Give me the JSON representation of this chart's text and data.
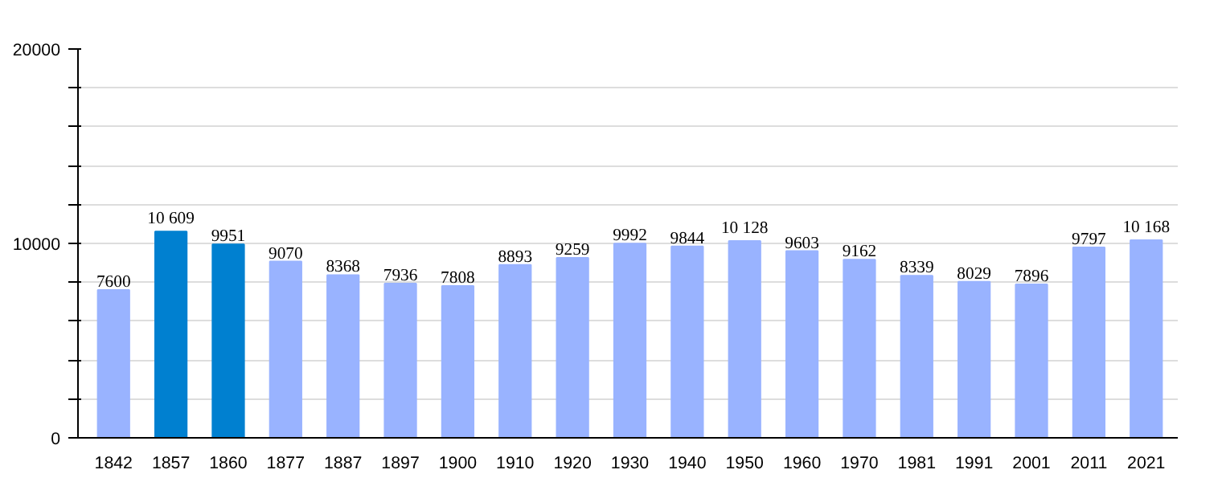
{
  "chart_data": {
    "type": "bar",
    "categories": [
      "1842",
      "1857",
      "1860",
      "1877",
      "1887",
      "1897",
      "1900",
      "1910",
      "1920",
      "1930",
      "1940",
      "1950",
      "1960",
      "1970",
      "1981",
      "1991",
      "2001",
      "2011",
      "2021"
    ],
    "values": [
      7600,
      10609,
      9951,
      9070,
      8368,
      7936,
      7808,
      8893,
      9259,
      9992,
      9844,
      10128,
      9603,
      9162,
      8339,
      8029,
      7896,
      9797,
      10168
    ],
    "colors": [
      "#99b3ff",
      "#0080d0",
      "#0080d0",
      "#99b3ff",
      "#99b3ff",
      "#99b3ff",
      "#99b3ff",
      "#99b3ff",
      "#99b3ff",
      "#99b3ff",
      "#99b3ff",
      "#99b3ff",
      "#99b3ff",
      "#99b3ff",
      "#99b3ff",
      "#99b3ff",
      "#99b3ff",
      "#99b3ff",
      "#99b3ff"
    ],
    "value_labels": [
      "7600",
      "10 609",
      "9951",
      "9070",
      "8368",
      "7936",
      "7808",
      "8893",
      "9259",
      "9992",
      "9844",
      "10 128",
      "9603",
      "9162",
      "8339",
      "8029",
      "7896",
      "9797",
      "10 168"
    ],
    "ylim": [
      0,
      20000
    ],
    "yticks": [
      0,
      {
        "value": 2000,
        "label": null
      },
      {
        "value": 4000,
        "label": null
      },
      {
        "value": 6000,
        "label": null
      },
      {
        "value": 8000,
        "label": null
      },
      10000,
      {
        "value": 12000,
        "label": null
      },
      {
        "value": 14000,
        "label": null
      },
      {
        "value": 16000,
        "label": null
      },
      {
        "value": 18000,
        "label": null
      },
      20000
    ],
    "grid": "y"
  }
}
